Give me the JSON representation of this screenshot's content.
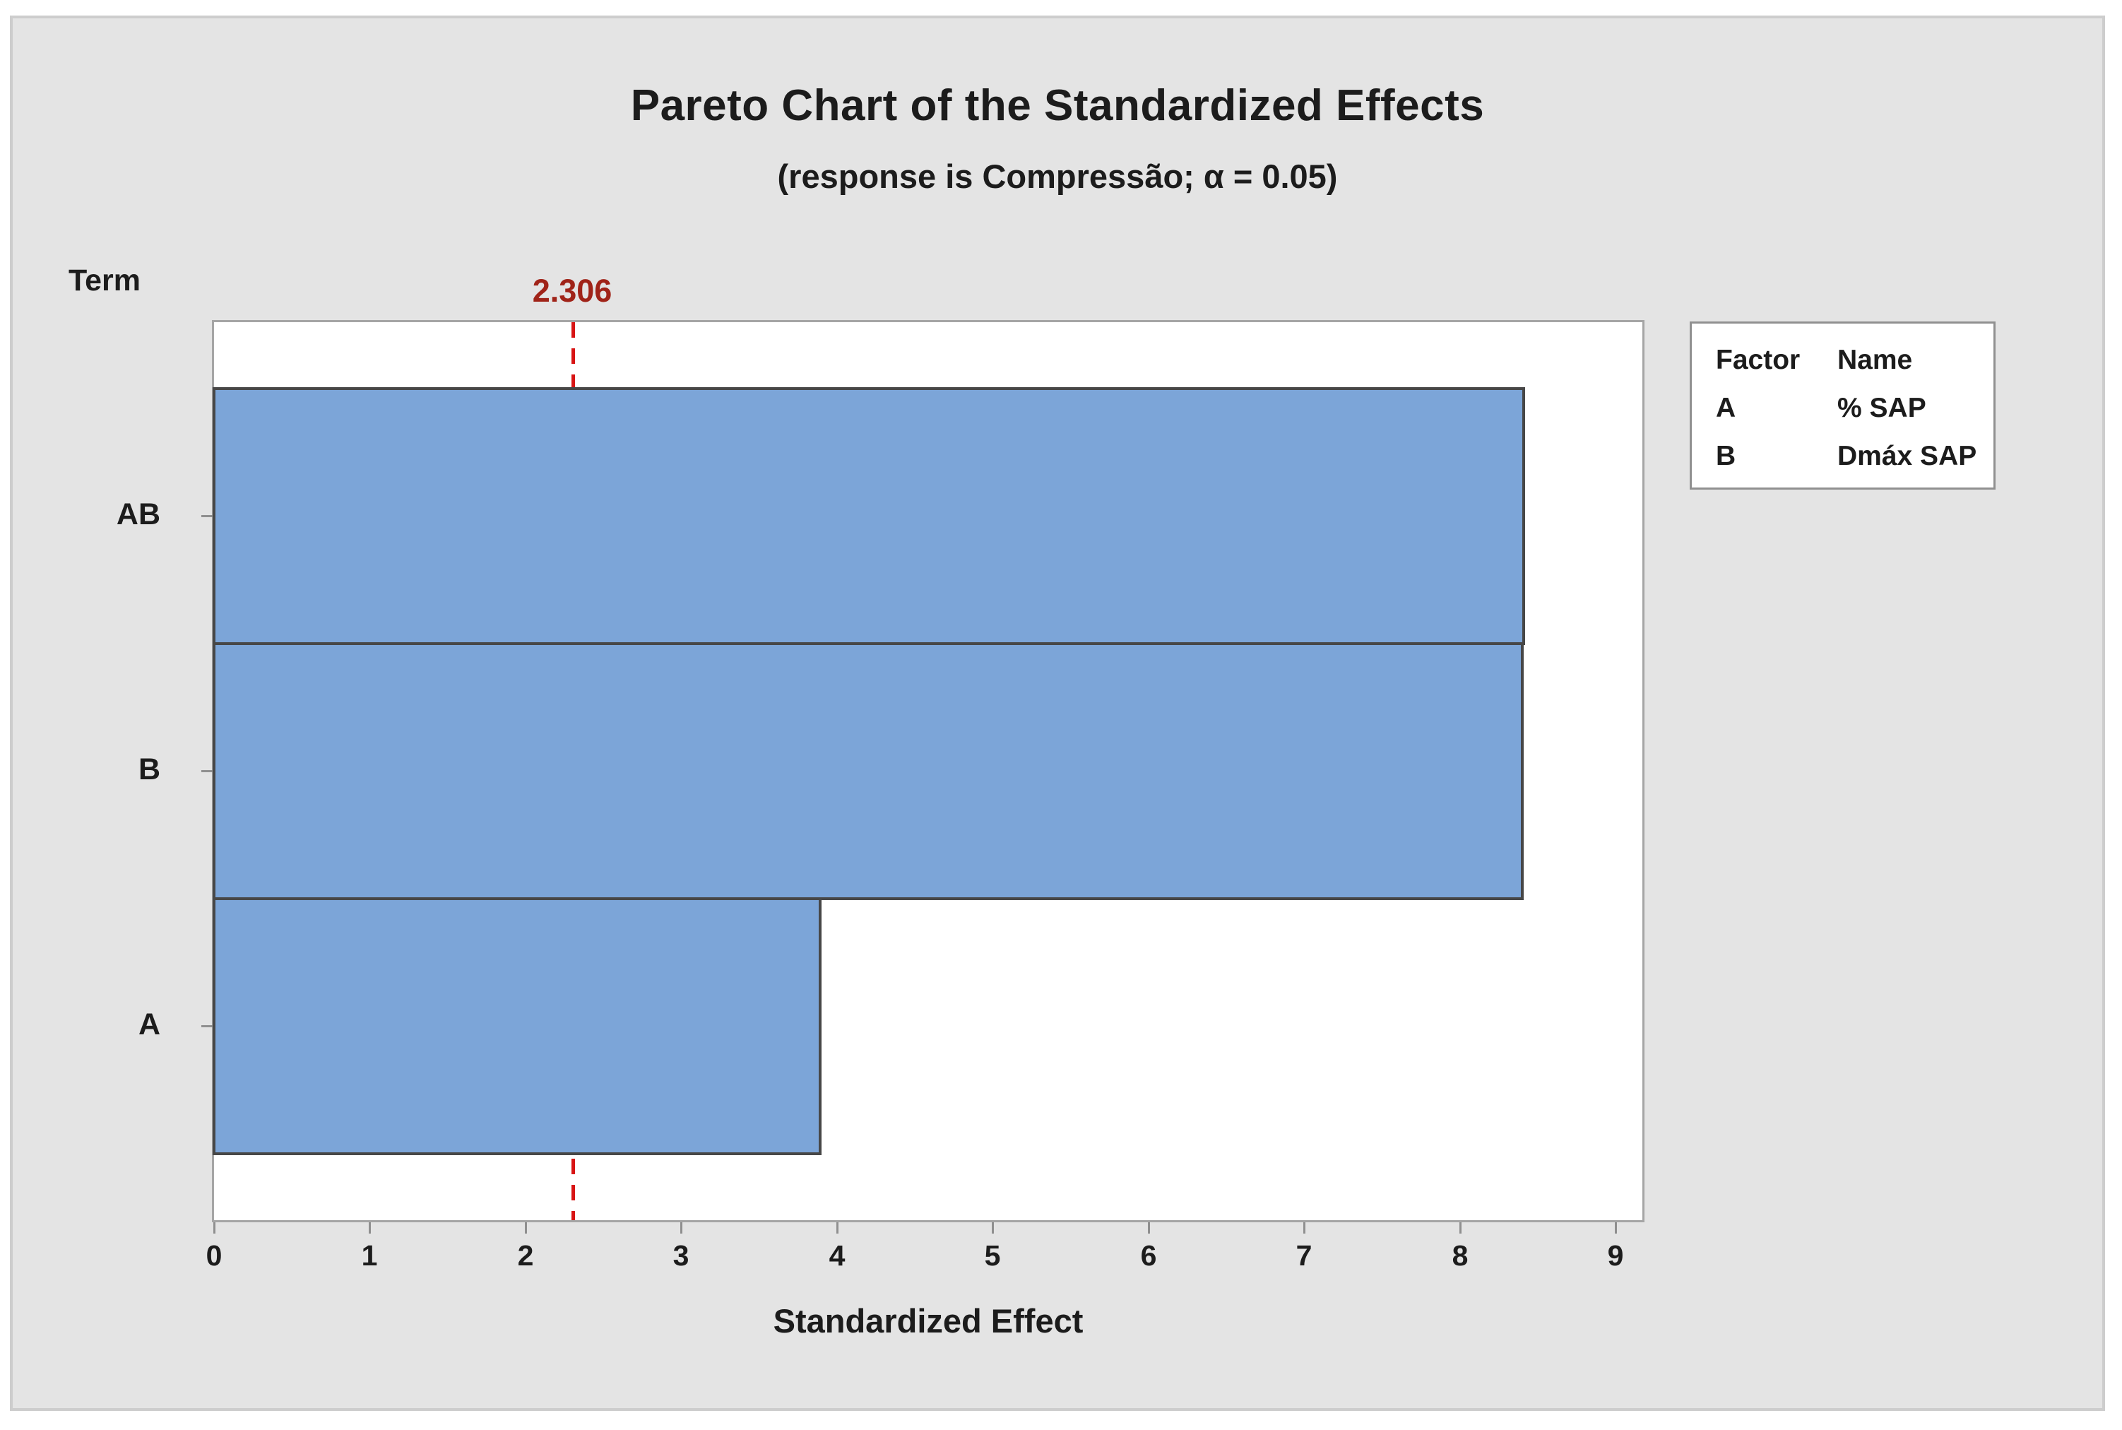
{
  "title": "Pareto Chart of the Standardized Effects",
  "subtitle": "(response is Compressão; α = 0.05)",
  "term_axis_label": "Term",
  "reference_line_label": "2.306",
  "chart_data": {
    "type": "bar",
    "orientation": "horizontal",
    "title": "Pareto Chart of the Standardized Effects",
    "subtitle": "(response is Compressão; α = 0.05)",
    "categories": [
      "AB",
      "B",
      "A"
    ],
    "values": [
      8.42,
      8.41,
      3.9
    ],
    "reference_line": 2.306,
    "alpha": 0.05,
    "response": "Compressão",
    "xlabel": "Standardized Effect",
    "ylabel": "Term",
    "x_ticks": [
      0,
      1,
      2,
      3,
      4,
      5,
      6,
      7,
      8,
      9
    ],
    "xlim": [
      0,
      9.17
    ],
    "grid": false,
    "legend_position": "right"
  },
  "legend": {
    "headers": [
      "Factor",
      "Name"
    ],
    "rows": [
      [
        "A",
        "% SAP"
      ],
      [
        "B",
        "Dmáx SAP"
      ]
    ]
  },
  "colors": {
    "bar_fill": "#7ca5d8",
    "bar_border": "#474747",
    "reference_line": "#d81414",
    "reference_label": "#a02318",
    "panel_background": "#e4e4e4",
    "plot_background": "#ffffff",
    "axis_line": "#a5a5a5",
    "text": "#1c1c1c"
  }
}
